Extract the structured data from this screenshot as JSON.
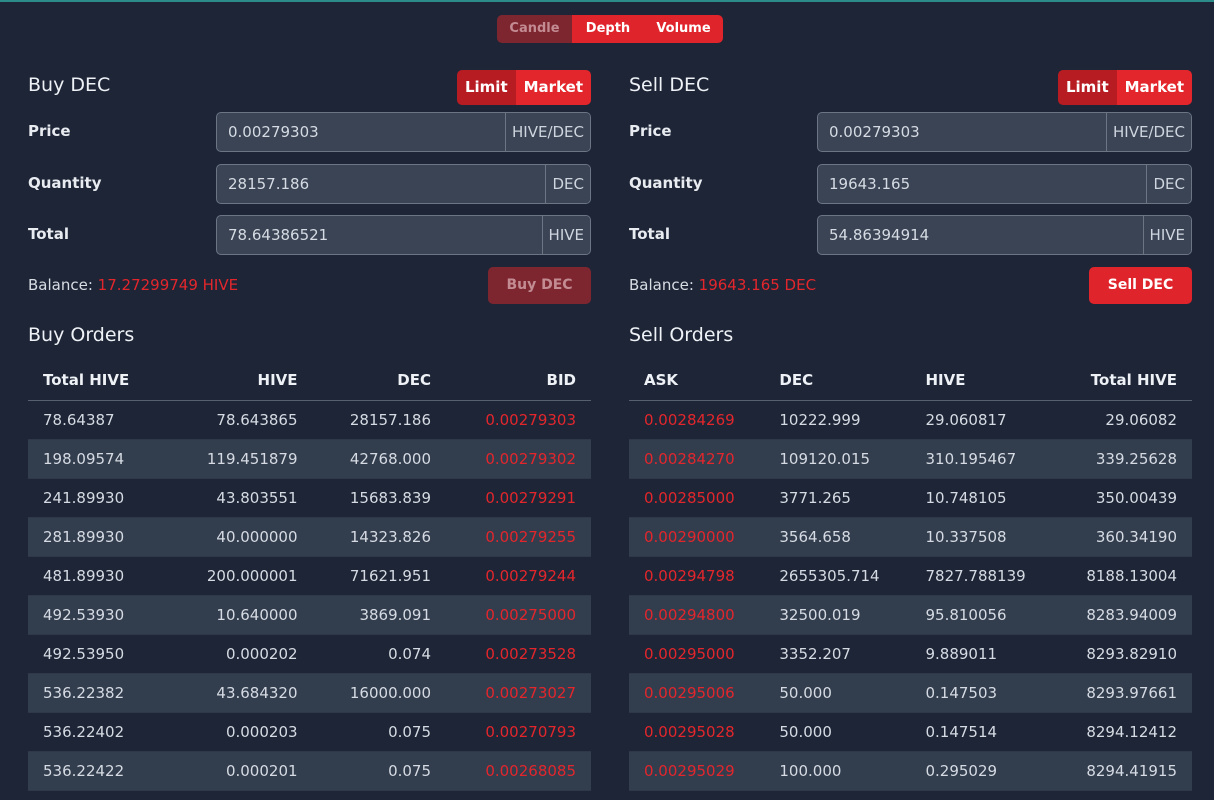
{
  "chart_tabs": [
    "Candle",
    "Depth",
    "Volume"
  ],
  "buy": {
    "title": "Buy DEC",
    "order_types": [
      "Limit",
      "Market"
    ],
    "price_label": "Price",
    "price_value": "0.00279303",
    "price_unit": "HIVE/DEC",
    "quantity_label": "Quantity",
    "quantity_value": "28157.186",
    "quantity_unit": "DEC",
    "total_label": "Total",
    "total_value": "78.64386521",
    "total_unit": "HIVE",
    "balance_label": "Balance:",
    "balance_amount": "17.27299749 HIVE",
    "action_label": "Buy DEC",
    "orders_title": "Buy Orders",
    "columns": [
      "Total HIVE",
      "HIVE",
      "DEC",
      "BID"
    ],
    "rows": [
      [
        "78.64387",
        "78.643865",
        "28157.186",
        "0.00279303"
      ],
      [
        "198.09574",
        "119.451879",
        "42768.000",
        "0.00279302"
      ],
      [
        "241.89930",
        "43.803551",
        "15683.839",
        "0.00279291"
      ],
      [
        "281.89930",
        "40.000000",
        "14323.826",
        "0.00279255"
      ],
      [
        "481.89930",
        "200.000001",
        "71621.951",
        "0.00279244"
      ],
      [
        "492.53930",
        "10.640000",
        "3869.091",
        "0.00275000"
      ],
      [
        "492.53950",
        "0.000202",
        "0.074",
        "0.00273528"
      ],
      [
        "536.22382",
        "43.684320",
        "16000.000",
        "0.00273027"
      ],
      [
        "536.22402",
        "0.000203",
        "0.075",
        "0.00270793"
      ],
      [
        "536.22422",
        "0.000201",
        "0.075",
        "0.00268085"
      ]
    ]
  },
  "sell": {
    "title": "Sell DEC",
    "order_types": [
      "Limit",
      "Market"
    ],
    "price_label": "Price",
    "price_value": "0.00279303",
    "price_unit": "HIVE/DEC",
    "quantity_label": "Quantity",
    "quantity_value": "19643.165",
    "quantity_unit": "DEC",
    "total_label": "Total",
    "total_value": "54.86394914",
    "total_unit": "HIVE",
    "balance_label": "Balance:",
    "balance_amount": "19643.165 DEC",
    "action_label": "Sell DEC",
    "orders_title": "Sell Orders",
    "columns": [
      "ASK",
      "DEC",
      "HIVE",
      "Total HIVE"
    ],
    "rows": [
      [
        "0.00284269",
        "10222.999",
        "29.060817",
        "29.06082"
      ],
      [
        "0.00284270",
        "109120.015",
        "310.195467",
        "339.25628"
      ],
      [
        "0.00285000",
        "3771.265",
        "10.748105",
        "350.00439"
      ],
      [
        "0.00290000",
        "3564.658",
        "10.337508",
        "360.34190"
      ],
      [
        "0.00294798",
        "2655305.714",
        "7827.788139",
        "8188.13004"
      ],
      [
        "0.00294800",
        "32500.019",
        "95.810056",
        "8283.94009"
      ],
      [
        "0.00295000",
        "3352.207",
        "9.889011",
        "8293.82910"
      ],
      [
        "0.00295006",
        "50.000",
        "0.147503",
        "8293.97661"
      ],
      [
        "0.00295028",
        "50.000",
        "0.147514",
        "8294.12412"
      ],
      [
        "0.00295029",
        "100.000",
        "0.295029",
        "8294.41915"
      ]
    ]
  }
}
